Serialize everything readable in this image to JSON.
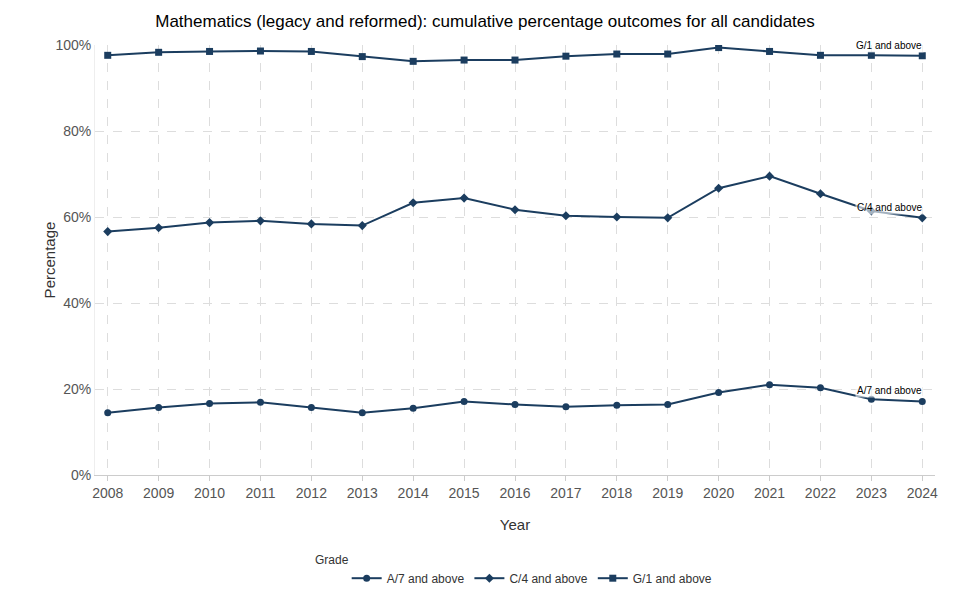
{
  "chart_data": {
    "type": "line",
    "title": "Mathematics (legacy and reformed): cumulative percentage outcomes for all candidates",
    "x_label": "Year",
    "y_label": "Percentage",
    "legend_title": "Grade",
    "legend": "bottom",
    "grid": true,
    "x": [
      2008,
      2009,
      2010,
      2011,
      2012,
      2013,
      2014,
      2015,
      2016,
      2017,
      2018,
      2019,
      2020,
      2021,
      2022,
      2023,
      2024
    ],
    "series": [
      {
        "name": "A/7 and above",
        "color": "#1b3d5f",
        "marker": "circle",
        "values": [
          14.5,
          15.7,
          16.6,
          16.9,
          15.7,
          14.5,
          15.5,
          17.1,
          16.4,
          15.9,
          16.2,
          16.4,
          19.2,
          21.0,
          20.3,
          17.6,
          17.1
        ]
      },
      {
        "name": "C/4 and above",
        "color": "#1b3d5f",
        "marker": "diamond",
        "values": [
          56.6,
          57.5,
          58.7,
          59.1,
          58.4,
          58.0,
          63.3,
          64.4,
          61.7,
          60.3,
          60.0,
          59.8,
          66.7,
          69.5,
          65.4,
          61.4,
          59.8
        ]
      },
      {
        "name": "G/1 and above",
        "color": "#1b3d5f",
        "marker": "square",
        "values": [
          97.6,
          98.3,
          98.5,
          98.6,
          98.5,
          97.3,
          96.2,
          96.5,
          96.5,
          97.4,
          97.9,
          97.9,
          99.4,
          98.5,
          97.6,
          97.6,
          97.5
        ]
      }
    ],
    "xlim": [
      2007.75,
      2024.25
    ],
    "xticks": [
      2008,
      2009,
      2010,
      2011,
      2012,
      2013,
      2014,
      2015,
      2016,
      2017,
      2018,
      2019,
      2020,
      2021,
      2022,
      2023,
      2024
    ],
    "ylim": [
      0,
      100
    ],
    "yticks": [
      {
        "value": 0,
        "label": "0%"
      },
      {
        "value": 20,
        "label": "20%"
      },
      {
        "value": 40,
        "label": "40%"
      },
      {
        "value": 60,
        "label": "60%"
      },
      {
        "value": 80,
        "label": "80%"
      },
      {
        "value": 100,
        "label": "100%"
      }
    ]
  }
}
